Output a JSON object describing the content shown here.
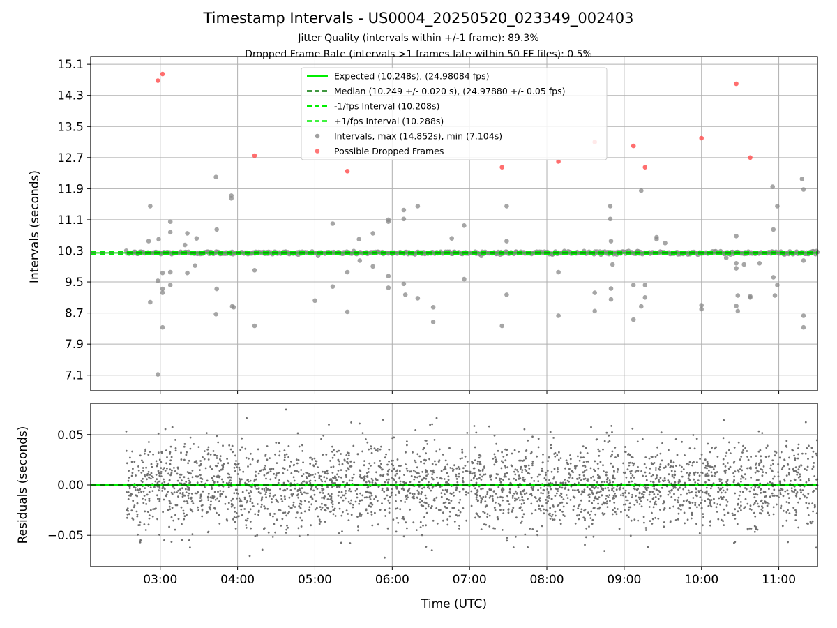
{
  "title": "Timestamp Intervals - US0004_20250520_023349_002403",
  "subtitle_1": "Jitter Quality (intervals within +/-1 frame): 89.3%",
  "subtitle_2": "Dropped Frame Rate (intervals >1 frames late within 50 FF files): 0.5%",
  "colors": {
    "expected": "#00ee00",
    "median": "#007700",
    "interval_bounds": "#00ee00",
    "intervals": "#888888",
    "dropped": "#ff5555",
    "residuals": "#707070",
    "grid": "#b0b0b0"
  },
  "chart_data": [
    {
      "type": "scatter",
      "ylabel": "Intervals (seconds)",
      "xlabel": "",
      "x_unit": "hours UTC",
      "xlim": [
        2.1,
        11.5
      ],
      "ylim": [
        6.7,
        15.3
      ],
      "xticks": [
        "03:00",
        "04:00",
        "05:00",
        "06:00",
        "07:00",
        "08:00",
        "09:00",
        "10:00",
        "11:00"
      ],
      "yticks": [
        "7.1",
        "7.9",
        "8.7",
        "9.5",
        "10.3",
        "11.1",
        "11.9",
        "12.7",
        "13.5",
        "14.3",
        "15.1"
      ],
      "grid": true,
      "legend_position": "top-center",
      "expected_interval": 10.248,
      "median_interval": 10.249,
      "minus_one_frame_interval": 10.208,
      "plus_one_frame_interval": 10.288,
      "legend": [
        "Expected (10.248s), (24.98084 fps)",
        "Median (10.249 +/- 0.020 s), (24.97880 +/- 0.05 fps)",
        "-1/fps Interval (10.208s)",
        "+1/fps Interval (10.288s)",
        "Intervals, max (14.852s), min (7.104s)",
        "Possible Dropped Frames"
      ],
      "series": [
        {
          "name": "Intervals, max (14.852s), min (7.104s)",
          "x_range": [
            2.56,
            11.5
          ],
          "typical_value": 10.25,
          "outliers": [
            [
              2.85,
              10.55
            ],
            [
              2.87,
              11.45
            ],
            [
              2.87,
              8.98
            ],
            [
              2.97,
              9.53
            ],
            [
              2.97,
              7.12
            ],
            [
              2.98,
              10.6
            ],
            [
              3.03,
              9.32
            ],
            [
              3.03,
              9.22
            ],
            [
              3.03,
              8.33
            ],
            [
              3.03,
              9.73
            ],
            [
              3.13,
              11.05
            ],
            [
              3.13,
              10.78
            ],
            [
              3.13,
              9.75
            ],
            [
              3.13,
              9.42
            ],
            [
              3.32,
              10.45
            ],
            [
              3.35,
              10.75
            ],
            [
              3.35,
              9.73
            ],
            [
              3.45,
              9.92
            ],
            [
              3.47,
              10.62
            ],
            [
              3.72,
              12.2
            ],
            [
              3.72,
              8.67
            ],
            [
              3.73,
              10.85
            ],
            [
              3.73,
              9.32
            ],
            [
              3.92,
              11.72
            ],
            [
              3.92,
              11.65
            ],
            [
              3.95,
              8.85
            ],
            [
              3.93,
              8.87
            ],
            [
              4.22,
              8.37
            ],
            [
              4.22,
              9.8
            ],
            [
              5.0,
              9.02
            ],
            [
              5.23,
              11.0
            ],
            [
              5.23,
              9.38
            ],
            [
              5.42,
              8.73
            ],
            [
              5.42,
              9.75
            ],
            [
              5.57,
              10.6
            ],
            [
              5.58,
              10.05
            ],
            [
              5.75,
              9.9
            ],
            [
              5.75,
              10.75
            ],
            [
              5.95,
              11.1
            ],
            [
              5.95,
              11.05
            ],
            [
              5.95,
              9.35
            ],
            [
              5.95,
              9.65
            ],
            [
              6.15,
              11.35
            ],
            [
              6.15,
              11.12
            ],
            [
              6.15,
              9.45
            ],
            [
              6.17,
              9.17
            ],
            [
              6.33,
              11.45
            ],
            [
              6.33,
              9.08
            ],
            [
              6.53,
              8.85
            ],
            [
              6.53,
              8.47
            ],
            [
              6.77,
              10.62
            ],
            [
              6.93,
              10.95
            ],
            [
              6.93,
              9.57
            ],
            [
              7.42,
              8.37
            ],
            [
              7.48,
              11.45
            ],
            [
              7.48,
              10.55
            ],
            [
              7.48,
              9.17
            ],
            [
              8.15,
              8.63
            ],
            [
              8.15,
              9.75
            ],
            [
              8.82,
              11.45
            ],
            [
              8.82,
              11.12
            ],
            [
              8.83,
              9.33
            ],
            [
              8.83,
              9.05
            ],
            [
              8.83,
              10.55
            ],
            [
              8.85,
              9.95
            ],
            [
              8.62,
              8.75
            ],
            [
              8.62,
              9.22
            ],
            [
              9.12,
              8.53
            ],
            [
              9.12,
              9.42
            ],
            [
              9.22,
              11.85
            ],
            [
              9.22,
              8.87
            ],
            [
              9.27,
              9.42
            ],
            [
              9.27,
              9.1
            ],
            [
              9.42,
              10.6
            ],
            [
              9.42,
              10.65
            ],
            [
              9.53,
              10.5
            ],
            [
              10.0,
              8.9
            ],
            [
              10.0,
              8.8
            ],
            [
              10.45,
              10.68
            ],
            [
              10.45,
              9.85
            ],
            [
              10.45,
              8.88
            ],
            [
              10.47,
              8.75
            ],
            [
              10.47,
              9.15
            ],
            [
              10.55,
              9.95
            ],
            [
              10.63,
              9.1
            ],
            [
              10.63,
              9.13
            ],
            [
              10.92,
              11.95
            ],
            [
              10.93,
              10.85
            ],
            [
              10.93,
              9.62
            ],
            [
              10.95,
              9.15
            ],
            [
              10.98,
              11.45
            ],
            [
              10.98,
              9.42
            ],
            [
              11.3,
              12.15
            ],
            [
              11.32,
              11.88
            ],
            [
              11.32,
              8.63
            ],
            [
              11.32,
              8.33
            ],
            [
              11.32,
              10.05
            ],
            [
              10.75,
              9.98
            ],
            [
              10.45,
              9.98
            ],
            [
              10.32,
              10.12
            ]
          ]
        },
        {
          "name": "Possible Dropped Frames",
          "points": [
            [
              2.97,
              14.68
            ],
            [
              3.03,
              14.85
            ],
            [
              4.22,
              12.75
            ],
            [
              5.42,
              12.35
            ],
            [
              7.42,
              12.45
            ],
            [
              8.15,
              12.6
            ],
            [
              8.62,
              13.1
            ],
            [
              9.12,
              13.0
            ],
            [
              9.27,
              12.45
            ],
            [
              10.0,
              13.2
            ],
            [
              10.45,
              14.6
            ],
            [
              10.63,
              12.7
            ]
          ]
        }
      ]
    },
    {
      "type": "scatter",
      "ylabel": "Residuals (seconds)",
      "xlabel": "Time (UTC)",
      "x_unit": "hours UTC",
      "xlim": [
        2.1,
        11.5
      ],
      "ylim": [
        -0.081,
        0.081
      ],
      "xticks": [
        "03:00",
        "04:00",
        "05:00",
        "06:00",
        "07:00",
        "08:00",
        "09:00",
        "10:00",
        "11:00"
      ],
      "yticks": [
        "0.05",
        "0.00",
        "−0.05"
      ],
      "grid": true,
      "series": [
        {
          "name": "Residuals",
          "x_range": [
            2.56,
            11.5
          ],
          "sample_count": 3000,
          "typical_spread_std": 0.022,
          "approx_range": [
            -0.08,
            0.078
          ]
        },
        {
          "name": "Zero reference",
          "value": 0.0
        }
      ]
    }
  ]
}
